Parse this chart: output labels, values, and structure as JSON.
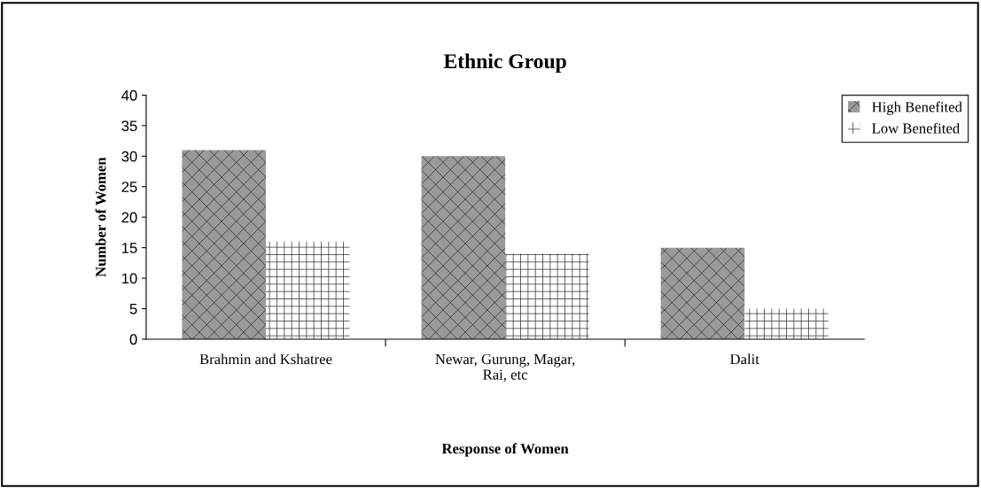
{
  "chart_data": {
    "type": "bar",
    "title": "Ethnic Group",
    "xlabel": "Response of Women",
    "ylabel": "Number of Women",
    "categories": [
      "Brahmin and Kshatree",
      "Newar, Gurung, Magar,\nRai, etc",
      "Dalit"
    ],
    "series": [
      {
        "name": "High Benefited",
        "color": "#9a9a9a",
        "values": [
          31,
          30,
          15
        ]
      },
      {
        "name": "Low Benefited",
        "color": "#ffffff",
        "values": [
          16,
          14,
          5
        ]
      }
    ],
    "ylim": [
      0,
      40
    ],
    "yticks": [
      0,
      5,
      10,
      15,
      20,
      25,
      30,
      35,
      40
    ],
    "grid": false,
    "legend": "top right"
  }
}
